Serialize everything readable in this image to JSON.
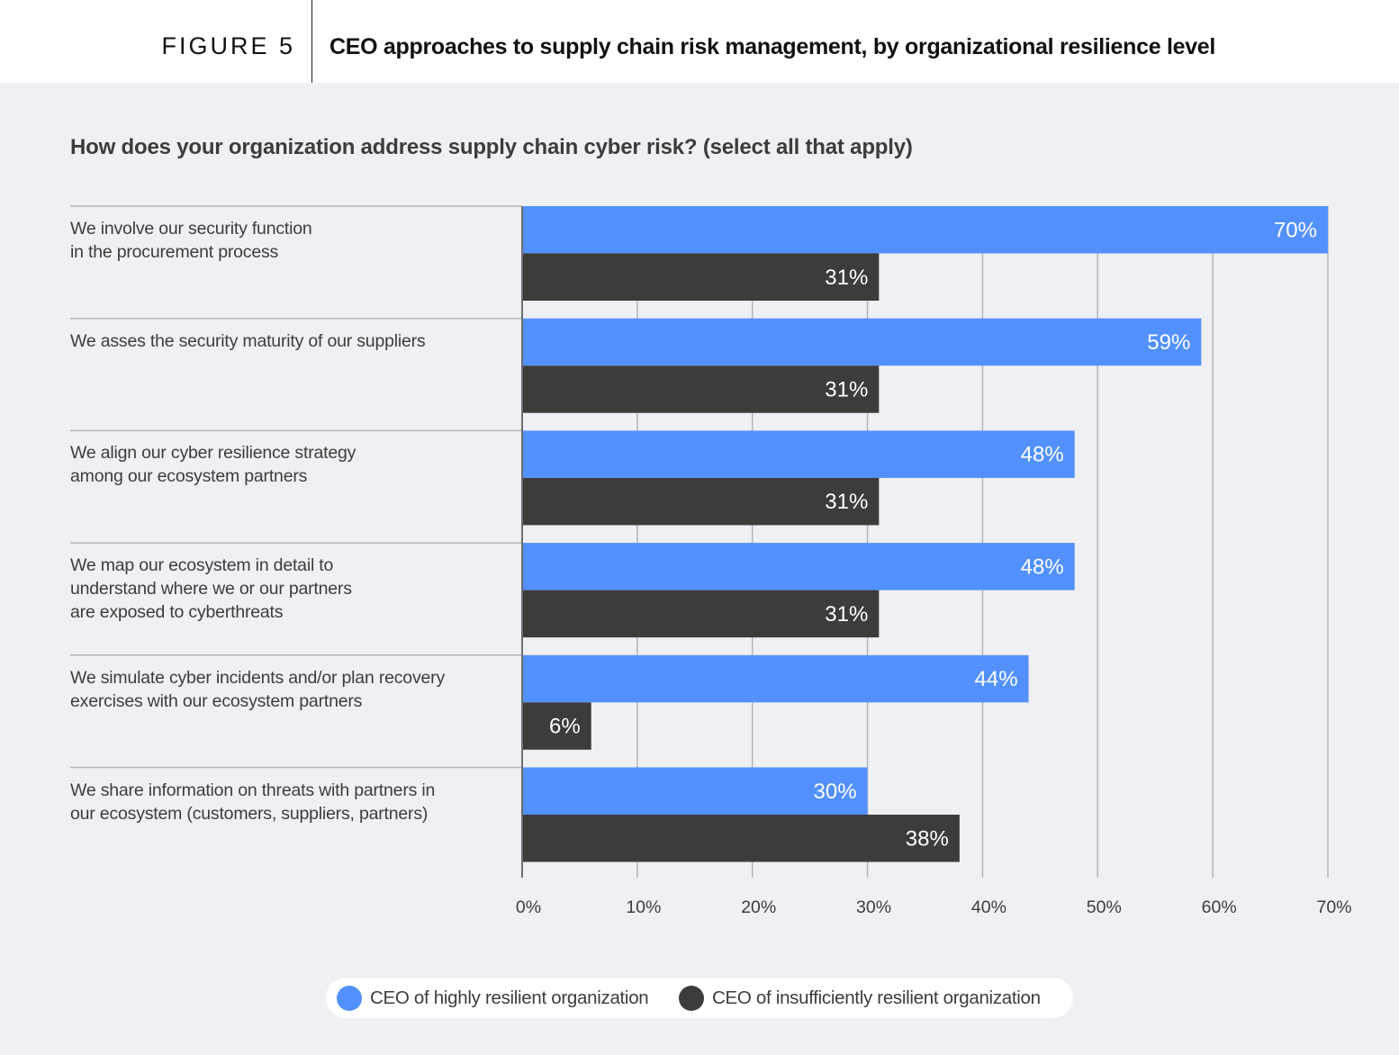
{
  "header": {
    "figure_label": "FIGURE 5",
    "title": "CEO approaches to supply chain risk management, by organizational resilience level"
  },
  "question": "How does your organization address supply chain cyber risk? (select all that apply)",
  "colors": {
    "highly_resilient": "#5291fd",
    "insufficiently_resilient": "#3d3c3b",
    "grid": "#b4b5ba",
    "axis": "#6e6e72",
    "background": "#eff0f4"
  },
  "legend": [
    {
      "label": "CEO of highly resilient organization",
      "color": "#5291fd"
    },
    {
      "label": "CEO of insufficiently resilient organization",
      "color": "#3d3c3b"
    }
  ],
  "chart_data": {
    "type": "bar",
    "orientation": "horizontal",
    "title": "How does your organization address supply chain cyber risk? (select all that apply)",
    "xlabel": "",
    "ylabel": "",
    "xlim": [
      0,
      70
    ],
    "x_ticks": [
      "0%",
      "10%",
      "20%",
      "30%",
      "40%",
      "50%",
      "60%",
      "70%"
    ],
    "x_tick_values": [
      0,
      10,
      20,
      30,
      40,
      50,
      60,
      70
    ],
    "grid": true,
    "legend_position": "bottom-center",
    "categories": [
      [
        "We involve our security function",
        "in the procurement process"
      ],
      [
        "We asses the security maturity of our suppliers"
      ],
      [
        "We align our cyber resilience strategy",
        "among our ecosystem partners"
      ],
      [
        "We map our ecosystem in detail to",
        "understand where we or our partners",
        "are exposed to cyberthreats"
      ],
      [
        "We simulate cyber incidents and/or plan recovery",
        "exercises with our ecosystem partners"
      ],
      [
        "We share information on threats with partners in",
        "our ecosystem (customers, suppliers, partners)"
      ]
    ],
    "series": [
      {
        "name": "CEO of highly resilient organization",
        "color": "#5291fd",
        "values": [
          70,
          59,
          48,
          48,
          44,
          30
        ],
        "labels": [
          "70%",
          "59%",
          "48%",
          "48%",
          "44%",
          "30%"
        ]
      },
      {
        "name": "CEO of insufficiently resilient organization",
        "color": "#3d3c3b",
        "values": [
          31,
          31,
          31,
          31,
          6,
          38
        ],
        "labels": [
          "31%",
          "31%",
          "31%",
          "31%",
          "6%",
          "38%"
        ]
      }
    ]
  }
}
